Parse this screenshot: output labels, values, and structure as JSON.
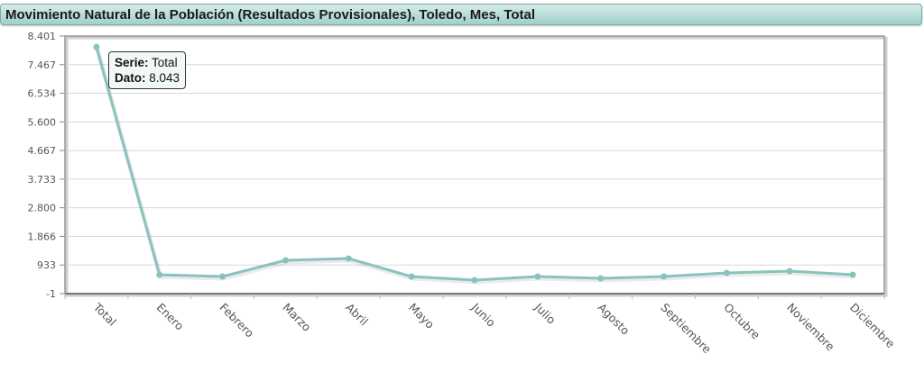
{
  "header": {
    "title": "Movimiento Natural de la Población (Resultados Provisionales), Toledo, Mes, Total"
  },
  "tooltip": {
    "serie_label": "Serie:",
    "serie_value": "Total",
    "dato_label": "Dato:",
    "dato_value": "8.043"
  },
  "colors": {
    "series": "#88c4bd",
    "grid": "#d8d8d8",
    "axis": "#888888",
    "title_bar_top": "#d6ecea",
    "title_bar_bottom": "#9fd0cb"
  },
  "chart_data": {
    "type": "line",
    "title": "Movimiento Natural de la Población (Resultados Provisionales), Toledo, Mes, Total",
    "xlabel": "",
    "ylabel": "",
    "categories": [
      "Total",
      "Enero",
      "Febrero",
      "Marzo",
      "Abril",
      "Mayo",
      "Junio",
      "Julio",
      "Agosto",
      "Septiembre",
      "Octubre",
      "Noviembre",
      "Diciembre"
    ],
    "series": [
      {
        "name": "Total",
        "values": [
          8043,
          616,
          557,
          1086,
          1145,
          557,
          440,
          557,
          498,
          557,
          675,
          734,
          616
        ]
      }
    ],
    "y_ticks": [
      "8.401",
      "7.467",
      "6.534",
      "5.600",
      "4.667",
      "3.733",
      "2.800",
      "1.866",
      "933",
      "-1"
    ],
    "ylim": [
      -1,
      8401
    ],
    "grid": true,
    "legend": "none",
    "x_label_rotation": 45
  }
}
